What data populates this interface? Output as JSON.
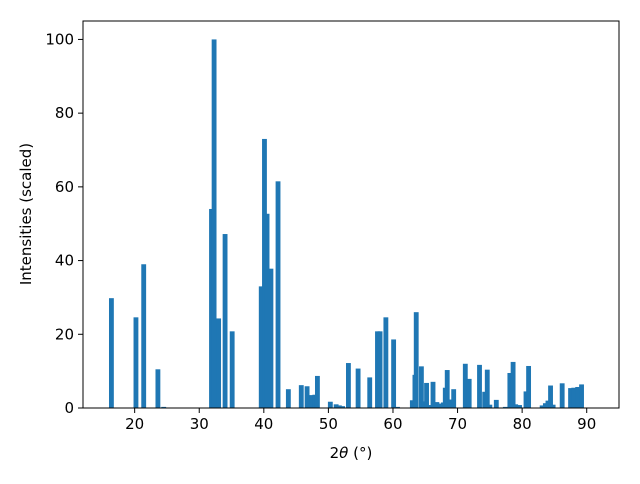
{
  "chart_data": {
    "type": "bar",
    "xlabel_prefix": "2",
    "xlabel_theta": "θ",
    "xlabel_unit": "(°)",
    "ylabel": "Intensities (scaled)",
    "xlim": [
      12,
      95
    ],
    "ylim": [
      0,
      105
    ],
    "bar_width": 0.75,
    "bar_color": "#1f77b4",
    "xticks": [
      20,
      30,
      40,
      50,
      60,
      70,
      80,
      90
    ],
    "yticks": [
      0,
      20,
      40,
      60,
      80,
      100
    ],
    "grid": false,
    "legend": "none",
    "x": [
      16.4,
      20.2,
      21.4,
      23.6,
      24.5,
      31.9,
      32.3,
      33.0,
      34.0,
      35.1,
      39.6,
      40.1,
      40.5,
      41.1,
      42.2,
      43.8,
      45.8,
      46.7,
      47.4,
      47.9,
      48.3,
      50.3,
      51.2,
      51.7,
      52.2,
      53.1,
      54.6,
      56.4,
      57.6,
      58.0,
      58.9,
      60.1,
      60.7,
      63.0,
      63.4,
      63.6,
      64.4,
      64.8,
      65.2,
      65.9,
      66.2,
      66.8,
      67.3,
      67.8,
      68.1,
      68.4,
      68.8,
      69.4,
      71.2,
      71.8,
      73.4,
      74.2,
      74.6,
      75.0,
      76.0,
      77.4,
      78.1,
      78.6,
      79.0,
      79.6,
      80.6,
      81.0,
      83.1,
      83.6,
      84.0,
      84.4,
      84.8,
      86.2,
      87.5,
      88.0,
      88.6,
      89.2
    ],
    "values": [
      29.8,
      24.6,
      39.0,
      10.5,
      0.3,
      54.0,
      100.0,
      24.3,
      47.2,
      20.8,
      33.0,
      73.0,
      52.7,
      37.8,
      61.5,
      5.1,
      6.2,
      5.9,
      3.5,
      3.6,
      8.7,
      1.7,
      1.0,
      0.7,
      0.5,
      12.2,
      10.7,
      8.3,
      20.8,
      20.8,
      24.6,
      18.6,
      0.3,
      2.1,
      9.0,
      26.0,
      11.3,
      1.8,
      6.8,
      0.8,
      7.1,
      1.6,
      1.2,
      1.5,
      5.5,
      10.3,
      2.3,
      5.1,
      12.0,
      7.9,
      11.7,
      4.4,
      10.4,
      0.9,
      2.2,
      0.3,
      9.5,
      12.5,
      1.0,
      0.8,
      4.5,
      11.4,
      0.7,
      1.3,
      2.0,
      6.1,
      0.9,
      6.7,
      5.4,
      5.5,
      5.7,
      6.4
    ]
  }
}
